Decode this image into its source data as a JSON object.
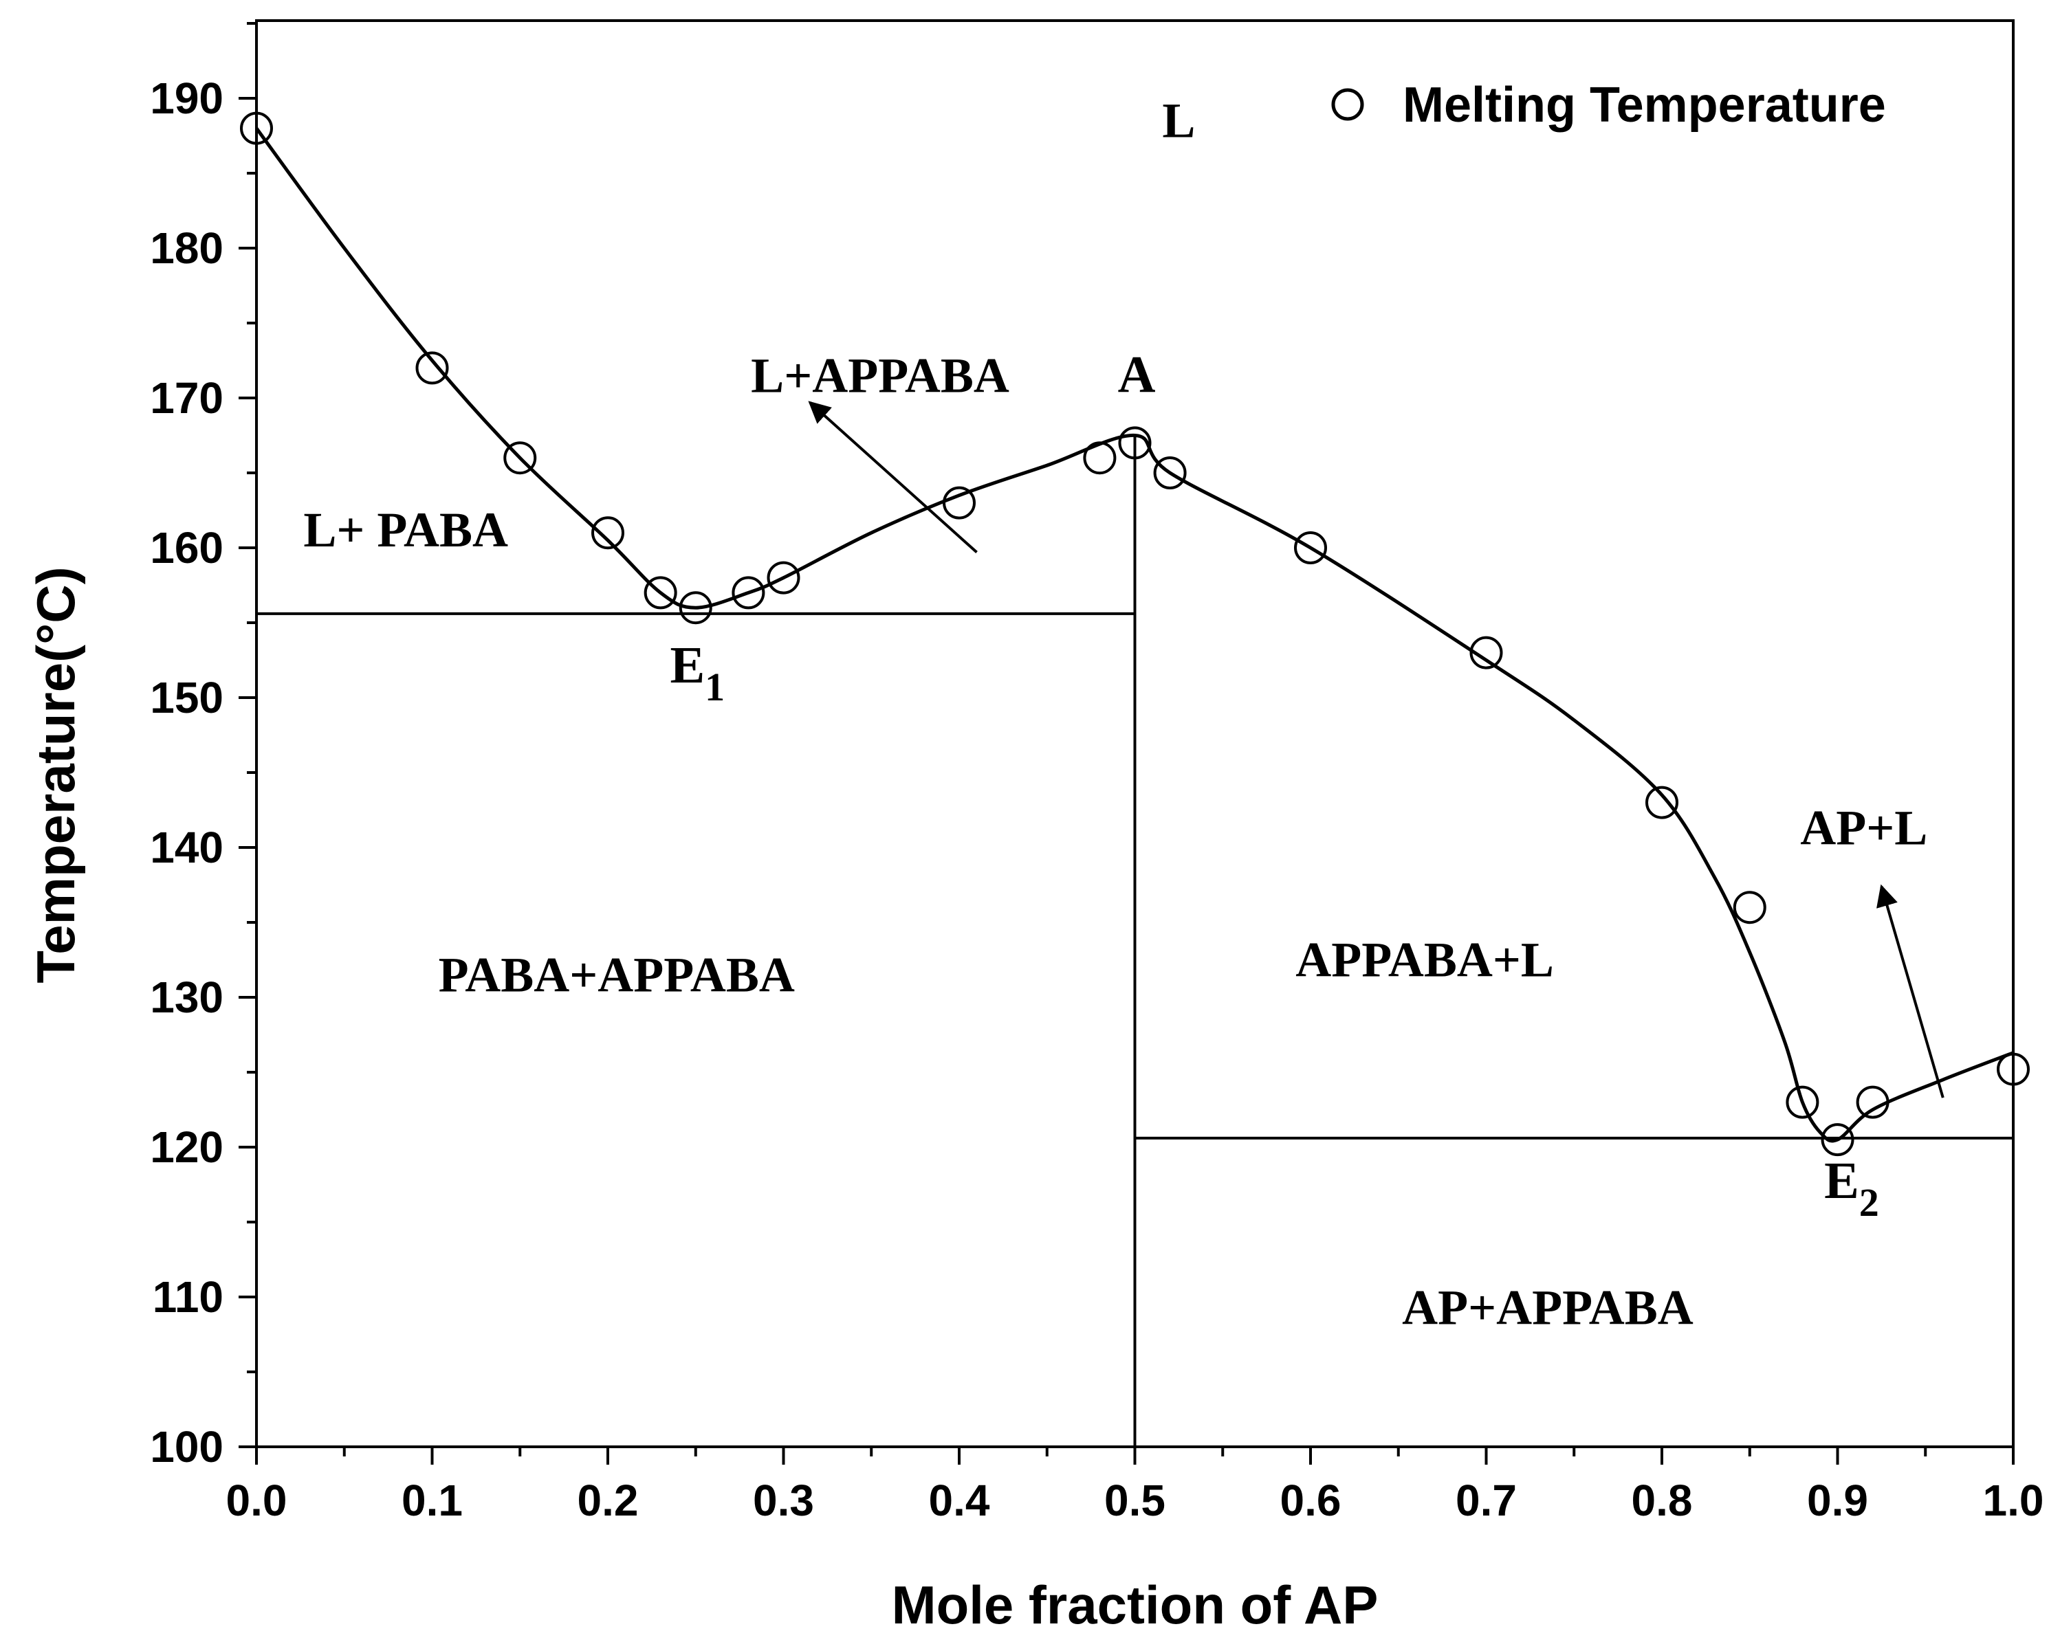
{
  "chart_data": {
    "type": "scatter",
    "xlabel": "Mole fraction of AP",
    "ylabel": "Temperature(°C)",
    "xlim": [
      0.0,
      1.0
    ],
    "ylim": [
      100,
      195
    ],
    "x_ticks": [
      "0.0",
      "0.1",
      "0.2",
      "0.3",
      "0.4",
      "0.5",
      "0.6",
      "0.7",
      "0.8",
      "0.9",
      "1.0"
    ],
    "y_ticks": [
      "100",
      "110",
      "120",
      "130",
      "140",
      "150",
      "160",
      "170",
      "180",
      "190"
    ],
    "grid": false,
    "legend": {
      "position": "top-right",
      "entries": [
        "Melting Temperature"
      ]
    },
    "series": [
      {
        "name": "Melting Temperature",
        "marker": "open-circle",
        "x": [
          0.0,
          0.1,
          0.15,
          0.2,
          0.23,
          0.25,
          0.28,
          0.3,
          0.4,
          0.48,
          0.5,
          0.52,
          0.6,
          0.7,
          0.8,
          0.85,
          0.88,
          0.9,
          0.92,
          1.0
        ],
        "y": [
          188,
          172,
          166,
          161,
          157,
          156,
          157,
          158,
          163,
          166,
          167,
          165,
          160,
          153,
          143,
          136,
          123,
          120.5,
          123,
          125.2
        ]
      }
    ],
    "liquidus_curve": {
      "x": [
        0.0,
        0.05,
        0.1,
        0.15,
        0.2,
        0.23,
        0.25,
        0.28,
        0.3,
        0.35,
        0.4,
        0.45,
        0.5,
        0.52,
        0.6,
        0.7,
        0.75,
        0.8,
        0.83,
        0.85,
        0.87,
        0.88,
        0.89,
        0.9,
        0.92,
        0.96,
        1.0
      ],
      "y": [
        188,
        180,
        172.5,
        166,
        160.5,
        157,
        156,
        157,
        158,
        161,
        163.5,
        165.5,
        167.5,
        165,
        160,
        152.5,
        148.5,
        143.5,
        138,
        133,
        127,
        123,
        121,
        120.5,
        122.5,
        124.5,
        126.3
      ]
    },
    "eutectic_lines": [
      {
        "x": [
          0.0,
          0.5
        ],
        "y": [
          155.6,
          155.6
        ]
      },
      {
        "x": [
          0.5,
          1.0
        ],
        "y": [
          120.6,
          120.6
        ]
      }
    ],
    "vertical_line": {
      "x": 0.5,
      "y": [
        100,
        167.5
      ]
    },
    "arrows": [
      {
        "from": [
          0.41,
          159.7
        ],
        "to": [
          0.315,
          169.7
        ]
      },
      {
        "from": [
          0.96,
          123.3
        ],
        "to": [
          0.925,
          137.4
        ]
      }
    ],
    "region_labels": [
      {
        "text": "L",
        "x": 0.525,
        "y": 188.5
      },
      {
        "text": "L+APPABA",
        "x": 0.355,
        "y": 171.5
      },
      {
        "text": "L+ PABA",
        "x": 0.085,
        "y": 161.2
      },
      {
        "text": "PABA+APPABA",
        "x": 0.205,
        "y": 131.5
      },
      {
        "text": "APPABA+L",
        "x": 0.665,
        "y": 132.5
      },
      {
        "text": "AP+L",
        "x": 0.915,
        "y": 141.3
      },
      {
        "text": "AP+APPABA",
        "x": 0.735,
        "y": 109.3
      }
    ],
    "point_labels": [
      {
        "text": "A",
        "sub": "",
        "x": 0.501,
        "y": 171.6
      },
      {
        "text": "E",
        "sub": "1",
        "x": 0.251,
        "y": 152.2
      },
      {
        "text": "E",
        "sub": "2",
        "x": 0.908,
        "y": 117.8
      }
    ]
  }
}
